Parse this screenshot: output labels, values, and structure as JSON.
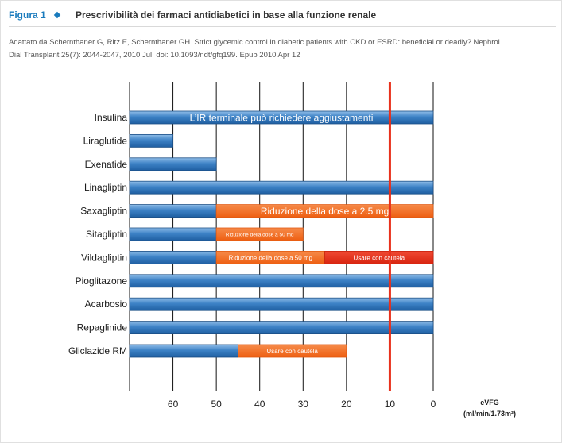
{
  "header": {
    "figure_label": "Figura 1",
    "title": "Prescrivibilità dei farmaci antidiabetici in base alla funzione renale"
  },
  "source": {
    "line1": "Adattato da Schernthaner G, Ritz E, Schernthaner GH. Strict glycemic control in diabetic patients with CKD or ESRD: beneficial or deadly? Nephrol",
    "line2": "Dial Transplant 25(7): 2044-2047, 2010 Jul. doi: 10.1093/ndt/gfq199. Epub 2010 Apr 12"
  },
  "colors": {
    "blue": "#3a7fc4",
    "orange": "#f26b1f",
    "red": "#e8311c",
    "grid": "#111111",
    "reference_line": "#e8311c"
  },
  "chart_data": {
    "type": "bar",
    "orientation": "horizontal",
    "x_reversed": true,
    "xlim": [
      70,
      0
    ],
    "x_ticks": [
      60,
      50,
      40,
      30,
      20,
      10,
      0
    ],
    "xlabel_line1": "eVFG",
    "xlabel_line2": "(ml/min/1.73m²)",
    "grid": "vertical",
    "reference_line_x": 10,
    "categories": [
      "Insulina",
      "Liraglutide",
      "Exenatide",
      "Linagliptin",
      "Saxagliptin",
      "Sitagliptin",
      "Vildagliptin",
      "Pioglitazone",
      "Acarbosio",
      "Repaglinide",
      "Gliclazide RM"
    ],
    "bars": [
      {
        "category": "Insulina",
        "segments": [
          {
            "from": 70,
            "to": 0,
            "color": "blue",
            "label": "L’IR terminale può richiedere aggiustamenti"
          }
        ]
      },
      {
        "category": "Liraglutide",
        "segments": [
          {
            "from": 70,
            "to": 60,
            "color": "blue",
            "label": ""
          }
        ]
      },
      {
        "category": "Exenatide",
        "segments": [
          {
            "from": 70,
            "to": 50,
            "color": "blue",
            "label": ""
          }
        ]
      },
      {
        "category": "Linagliptin",
        "segments": [
          {
            "from": 70,
            "to": 0,
            "color": "blue",
            "label": ""
          }
        ]
      },
      {
        "category": "Saxagliptin",
        "segments": [
          {
            "from": 70,
            "to": 50,
            "color": "blue",
            "label": ""
          },
          {
            "from": 50,
            "to": 0,
            "color": "orange",
            "label": "Riduzione della dose a 2.5 mg"
          }
        ]
      },
      {
        "category": "Sitagliptin",
        "segments": [
          {
            "from": 70,
            "to": 50,
            "color": "blue",
            "label": ""
          },
          {
            "from": 50,
            "to": 30,
            "color": "orange",
            "label": "Riduzione della dose a 50 mg"
          }
        ]
      },
      {
        "category": "Vildagliptin",
        "segments": [
          {
            "from": 70,
            "to": 50,
            "color": "blue",
            "label": ""
          },
          {
            "from": 50,
            "to": 25,
            "color": "orange",
            "label": "Riduzione della dose a 50 mg"
          },
          {
            "from": 25,
            "to": 0,
            "color": "red",
            "label": "Usare con cautela"
          }
        ]
      },
      {
        "category": "Pioglitazone",
        "segments": [
          {
            "from": 70,
            "to": 0,
            "color": "blue",
            "label": ""
          }
        ]
      },
      {
        "category": "Acarbosio",
        "segments": [
          {
            "from": 70,
            "to": 0,
            "color": "blue",
            "label": ""
          }
        ]
      },
      {
        "category": "Repaglinide",
        "segments": [
          {
            "from": 70,
            "to": 0,
            "color": "blue",
            "label": ""
          }
        ]
      },
      {
        "category": "Gliclazide RM",
        "segments": [
          {
            "from": 70,
            "to": 45,
            "color": "blue",
            "label": ""
          },
          {
            "from": 45,
            "to": 20,
            "color": "orange",
            "label": "Usare con cautela"
          }
        ]
      }
    ]
  }
}
